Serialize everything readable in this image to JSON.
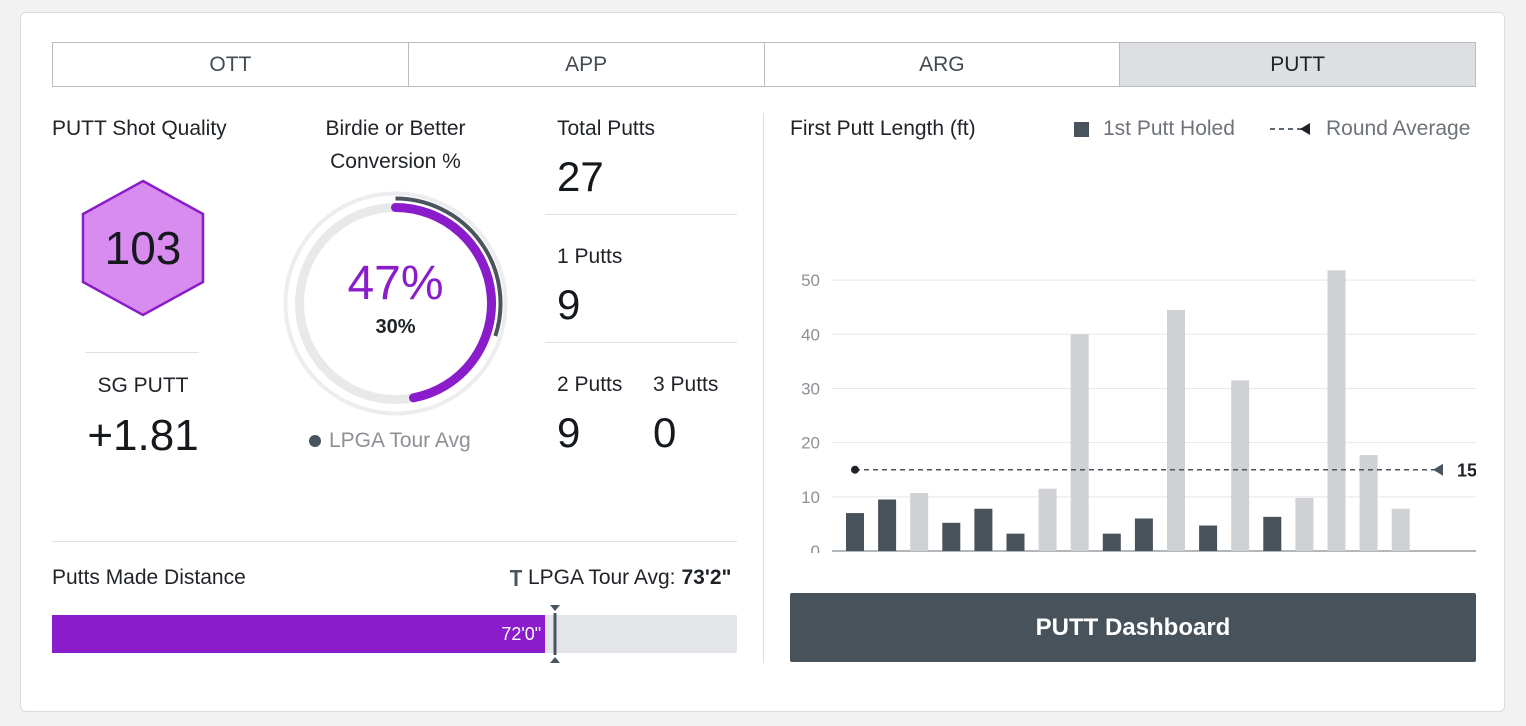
{
  "tabs": [
    {
      "label": "OTT",
      "active": false
    },
    {
      "label": "APP",
      "active": false
    },
    {
      "label": "ARG",
      "active": false
    },
    {
      "label": "PUTT",
      "active": true
    }
  ],
  "shot_quality": {
    "title": "PUTT Shot Quality",
    "value": "103",
    "hex_fill": "#d98cf0",
    "hex_stroke": "#8a1ccb"
  },
  "sg": {
    "label": "SG PUTT",
    "value": "+1.81"
  },
  "conversion": {
    "title_line1": "Birdie or Better",
    "title_line2": "Conversion %",
    "value_pct": "47%",
    "tour_pct": "30%",
    "value_fraction": 0.47,
    "tour_fraction": 0.3,
    "legend": "LPGA Tour Avg",
    "accent": "#8a1ccb",
    "tour_color": "#4a545e"
  },
  "putts": {
    "total_label": "Total Putts",
    "total": "27",
    "one_label": "1 Putts",
    "one": "9",
    "two_label": "2 Putts",
    "two": "9",
    "three_label": "3 Putts",
    "three": "0"
  },
  "distance": {
    "title": "Putts Made Distance",
    "tour_label": "LPGA Tour Avg:",
    "tour_value": "73'2\"",
    "value_label": "72'0\"",
    "value_fraction": 0.72,
    "tour_fraction": 0.735
  },
  "chart_data": {
    "type": "bar",
    "title": "First Putt Length (ft)",
    "legend": [
      "1st Putt Holed",
      "Round Average"
    ],
    "ylim": [
      0,
      55
    ],
    "yticks": [
      0,
      10,
      20,
      30,
      40,
      50
    ],
    "values": [
      7,
      9.5,
      10.7,
      5.2,
      7.8,
      3.2,
      11.5,
      40,
      3.2,
      6,
      44.5,
      4.7,
      31.5,
      6.3,
      9.8,
      51.8,
      17.7,
      7.8
    ],
    "holed": [
      true,
      true,
      false,
      true,
      true,
      true,
      false,
      false,
      true,
      true,
      false,
      true,
      false,
      true,
      false,
      false,
      false,
      false
    ],
    "average": 15,
    "average_label": "15",
    "holed_color": "#47525b",
    "missed_color": "#cfd1d5"
  },
  "button": {
    "label": "PUTT Dashboard"
  }
}
